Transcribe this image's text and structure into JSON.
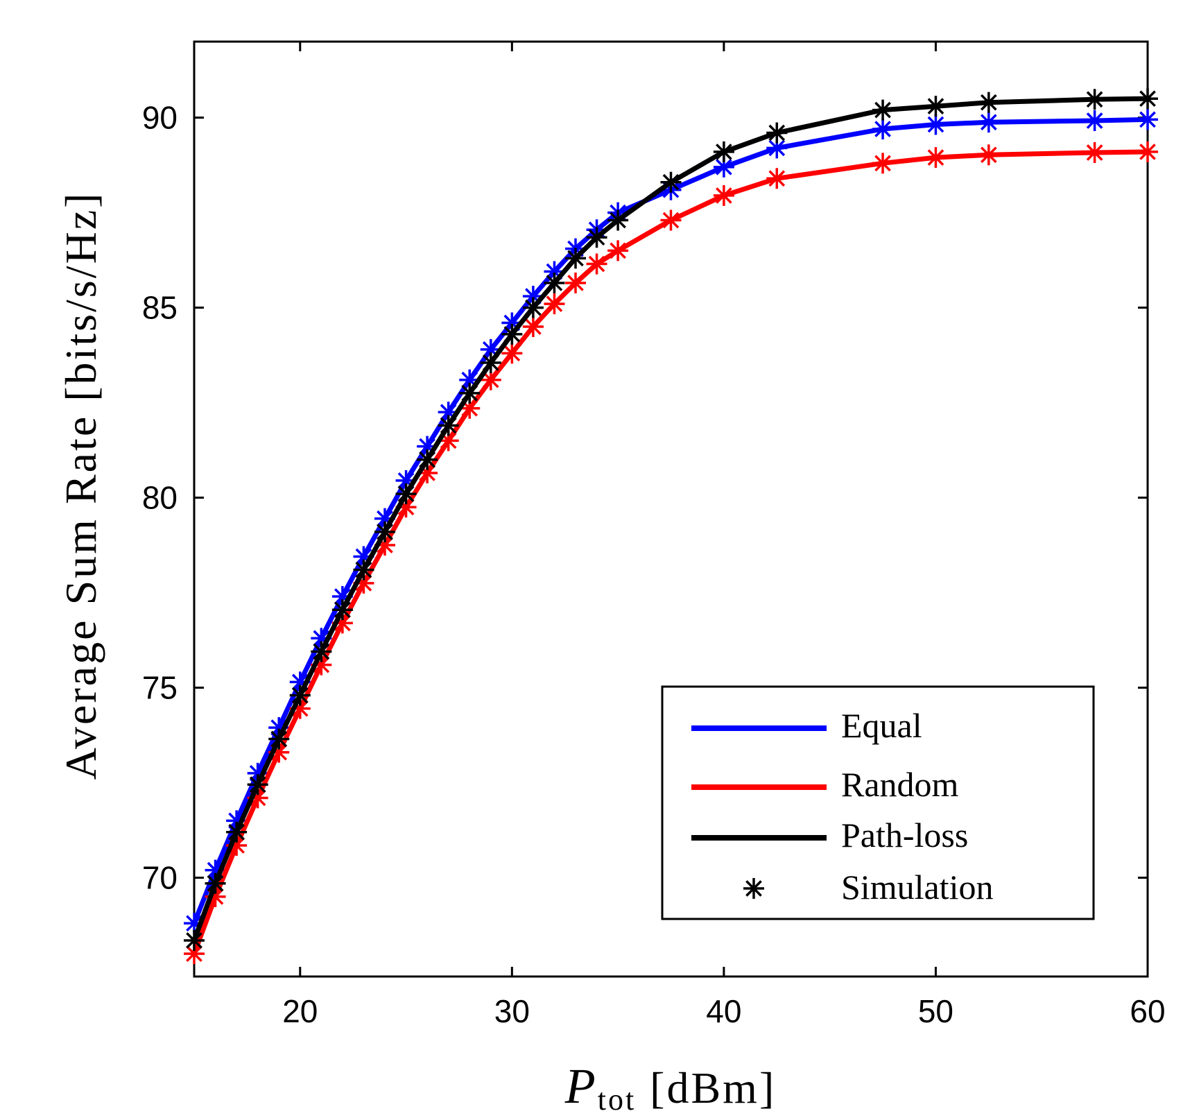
{
  "chart_data": {
    "type": "line",
    "title": "",
    "xlabel": {
      "main": "P",
      "sub": "tot",
      "unit": "[dBm]"
    },
    "ylabel": "Average Sum Rate [bits/s/Hz]",
    "xlim": [
      15,
      60
    ],
    "ylim": [
      67.4,
      92
    ],
    "xticks": [
      20,
      30,
      40,
      50,
      60
    ],
    "yticks": [
      70,
      75,
      80,
      85,
      90
    ],
    "grid": false,
    "legend_position": "bottom-right",
    "simulation_legend": "Simulation",
    "series": [
      {
        "name": "Equal",
        "color": "#0000ff",
        "x": [
          15,
          16,
          17,
          18,
          19,
          20,
          21,
          22,
          23,
          24,
          25,
          26,
          27,
          28,
          29,
          30,
          31,
          32,
          33,
          34,
          35,
          37.5,
          40,
          42.5,
          47.5,
          50,
          52.5,
          57.5,
          60
        ],
        "y": [
          68.8,
          70.2,
          71.5,
          72.75,
          73.95,
          75.15,
          76.3,
          77.4,
          78.45,
          79.45,
          80.45,
          81.35,
          82.25,
          83.1,
          83.9,
          84.6,
          85.3,
          85.95,
          86.55,
          87.05,
          87.5,
          88.1,
          88.7,
          89.2,
          89.7,
          89.82,
          89.88,
          89.92,
          89.95
        ]
      },
      {
        "name": "Random",
        "color": "#ff0000",
        "x": [
          15,
          16,
          17,
          18,
          19,
          20,
          21,
          22,
          23,
          24,
          25,
          26,
          27,
          28,
          29,
          30,
          31,
          32,
          33,
          34,
          35,
          37.5,
          40,
          42.5,
          47.5,
          50,
          52.5,
          57.5,
          60
        ],
        "y": [
          68.0,
          69.5,
          70.85,
          72.1,
          73.3,
          74.45,
          75.6,
          76.7,
          77.75,
          78.75,
          79.75,
          80.65,
          81.5,
          82.35,
          83.1,
          83.8,
          84.5,
          85.1,
          85.65,
          86.15,
          86.5,
          87.3,
          87.95,
          88.4,
          88.8,
          88.95,
          89.02,
          89.08,
          89.1
        ]
      },
      {
        "name": "Path-loss",
        "color": "#000000",
        "x": [
          15,
          16,
          17,
          18,
          19,
          20,
          21,
          22,
          23,
          24,
          25,
          26,
          27,
          28,
          29,
          30,
          31,
          32,
          33,
          34,
          35,
          37.5,
          40,
          42.5,
          47.5,
          50,
          52.5,
          57.5,
          60
        ],
        "y": [
          68.35,
          69.85,
          71.2,
          72.45,
          73.65,
          74.8,
          75.95,
          77.05,
          78.1,
          79.1,
          80.1,
          81.0,
          81.9,
          82.75,
          83.55,
          84.3,
          85.0,
          85.65,
          86.3,
          86.85,
          87.3,
          88.3,
          89.1,
          89.6,
          90.2,
          90.3,
          90.4,
          90.48,
          90.5
        ]
      }
    ]
  }
}
